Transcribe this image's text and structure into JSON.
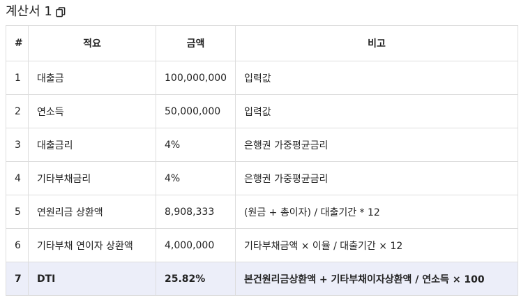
{
  "title": {
    "text": "계산서 1",
    "copy_icon": "copy-icon"
  },
  "table": {
    "headers": [
      "#",
      "적요",
      "금액",
      "비고"
    ],
    "rows": [
      {
        "num": "1",
        "desc": "대출금",
        "amount": "100,000,000",
        "note": "입력값"
      },
      {
        "num": "2",
        "desc": "연소득",
        "amount": "50,000,000",
        "note": "입력값"
      },
      {
        "num": "3",
        "desc": "대출금리",
        "amount": "4%",
        "note": "은행권 가중평균금리"
      },
      {
        "num": "4",
        "desc": "기타부채금리",
        "amount": "4%",
        "note": "은행권 가중평균금리"
      },
      {
        "num": "5",
        "desc": "연원리금 상환액",
        "amount": "8,908,333",
        "note": "(원금 + 총이자) / 대출기간 * 12"
      },
      {
        "num": "6",
        "desc": "기타부채 연이자 상환액",
        "amount": "4,000,000",
        "note": "기타부채금액 × 이율 / 대출기간 × 12"
      },
      {
        "num": "7",
        "desc": "DTI",
        "amount": "25.82%",
        "note": "본건원리금상환액 + 기타부채이자상환액 / 연소득 × 100"
      }
    ]
  },
  "colors": {
    "highlight_row": "#eceef9",
    "border": "#dddddd"
  }
}
